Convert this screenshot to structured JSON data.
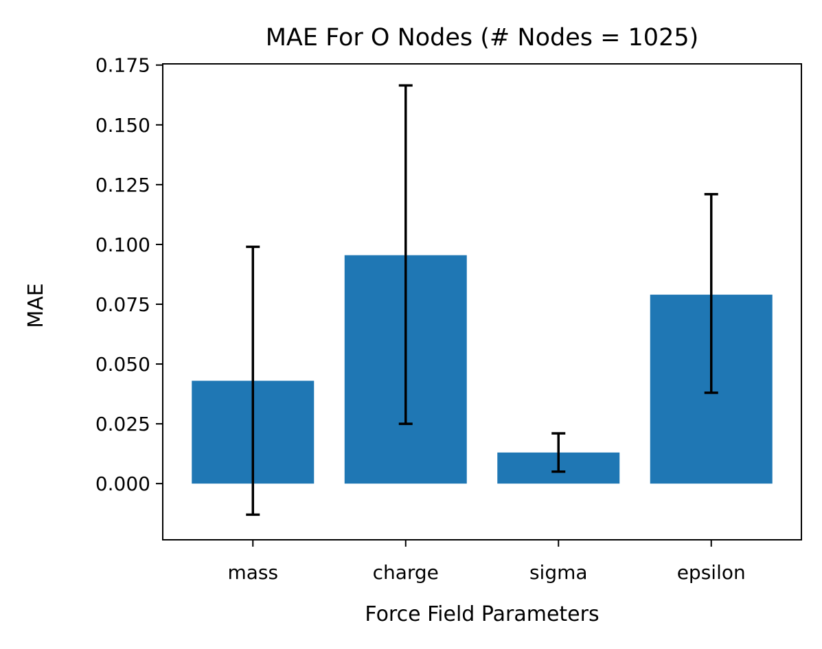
{
  "chart_data": {
    "type": "bar",
    "title": "MAE For O Nodes (# Nodes = 1025)",
    "xlabel": "Force Field Parameters",
    "ylabel": "MAE",
    "categories": [
      "mass",
      "charge",
      "sigma",
      "epsilon"
    ],
    "values": [
      0.043,
      0.0955,
      0.013,
      0.079
    ],
    "error_lower": [
      -0.013,
      0.025,
      0.005,
      0.038
    ],
    "error_upper": [
      0.099,
      0.1665,
      0.021,
      0.121
    ],
    "ylim": [
      -0.0235,
      0.1755
    ],
    "yticks": [
      "0.000",
      "0.025",
      "0.050",
      "0.075",
      "0.100",
      "0.125",
      "0.150",
      "0.175"
    ],
    "grid": false,
    "bar_color": "#1f77b4",
    "error_color": "#000000"
  }
}
